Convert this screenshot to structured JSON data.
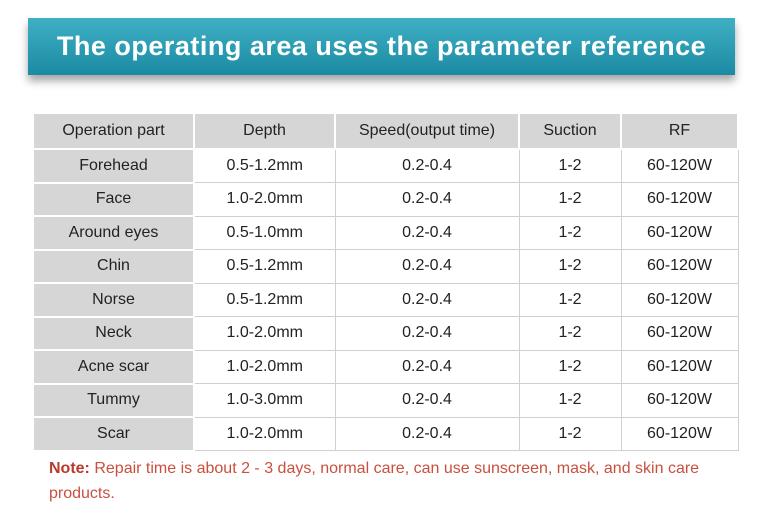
{
  "header": {
    "title": "The operating area uses the parameter reference"
  },
  "table": {
    "columns": [
      "Operation part",
      "Depth",
      "Speed(output time)",
      "Suction",
      "RF"
    ],
    "rows": [
      [
        "Forehead",
        "0.5-1.2mm",
        "0.2-0.4",
        "1-2",
        "60-120W"
      ],
      [
        "Face",
        "1.0-2.0mm",
        "0.2-0.4",
        "1-2",
        "60-120W"
      ],
      [
        "Around eyes",
        "0.5-1.0mm",
        "0.2-0.4",
        "1-2",
        "60-120W"
      ],
      [
        "Chin",
        "0.5-1.2mm",
        "0.2-0.4",
        "1-2",
        "60-120W"
      ],
      [
        "Norse",
        "0.5-1.2mm",
        "0.2-0.4",
        "1-2",
        "60-120W"
      ],
      [
        "Neck",
        "1.0-2.0mm",
        "0.2-0.4",
        "1-2",
        "60-120W"
      ],
      [
        "Acne scar",
        "1.0-2.0mm",
        "0.2-0.4",
        "1-2",
        "60-120W"
      ],
      [
        "Tummy",
        "1.0-3.0mm",
        "0.2-0.4",
        "1-2",
        "60-120W"
      ],
      [
        "Scar",
        "1.0-2.0mm",
        "0.2-0.4",
        "1-2",
        "60-120W"
      ]
    ]
  },
  "note": {
    "label": "Note:",
    "text": "Repair time is about 2 - 3 days, normal care, can use sunscreen, mask, and skin care products."
  }
}
